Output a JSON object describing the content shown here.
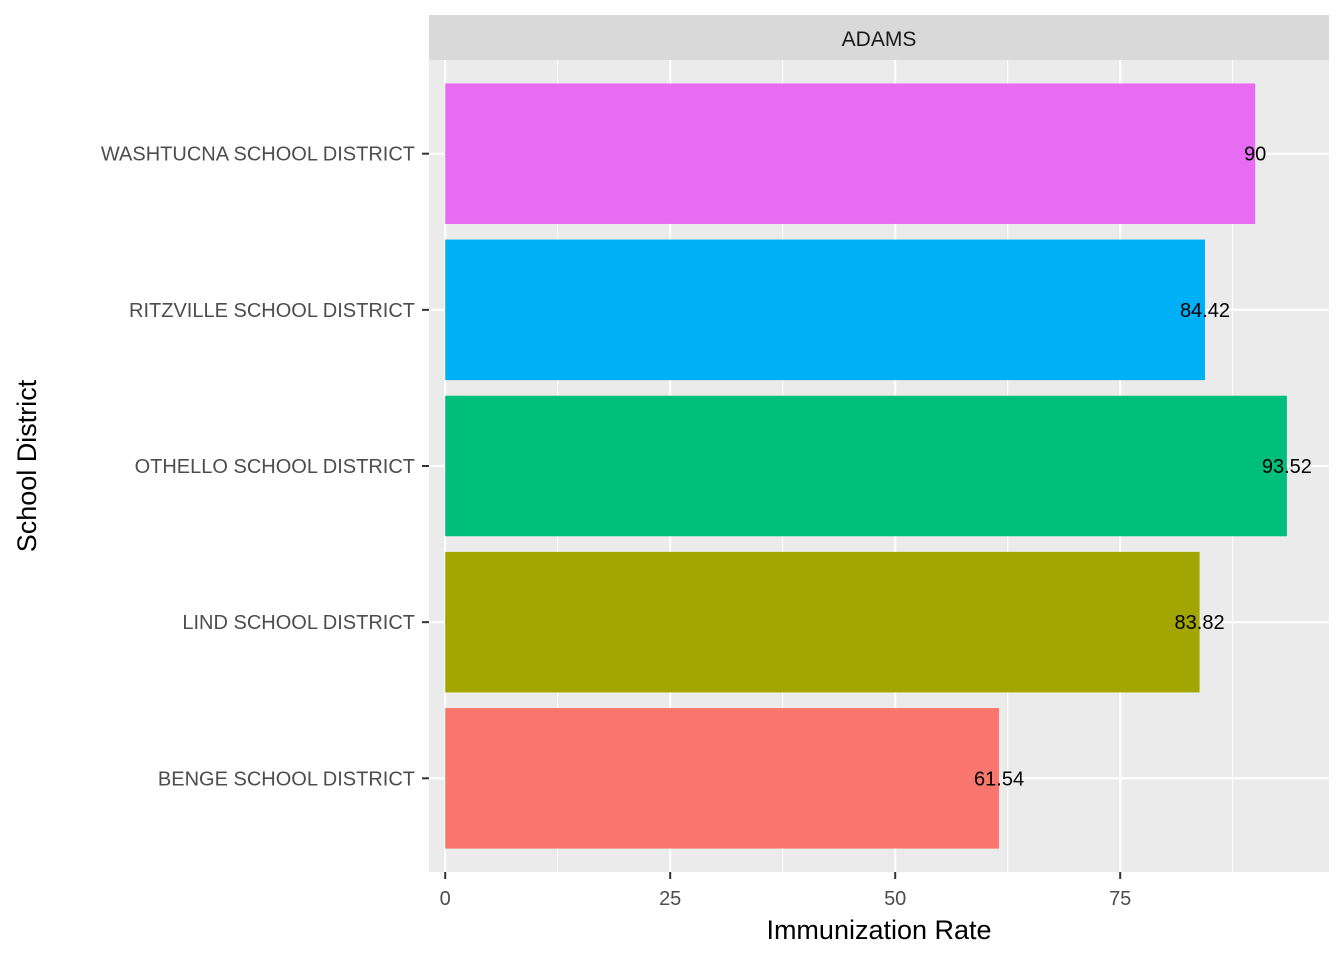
{
  "chart_data": {
    "type": "bar",
    "orientation": "horizontal",
    "facet": "ADAMS",
    "categories": [
      "BENGE SCHOOL DISTRICT",
      "LIND SCHOOL DISTRICT",
      "OTHELLO SCHOOL DISTRICT",
      "RITZVILLE SCHOOL DISTRICT",
      "WASHTUCNA SCHOOL DISTRICT"
    ],
    "values": [
      61.54,
      83.82,
      93.52,
      84.42,
      90
    ],
    "value_labels": [
      "61.54",
      "83.82",
      "93.52",
      "84.42",
      "90"
    ],
    "colors": [
      "#F8766D",
      "#A3A500",
      "#00BF7D",
      "#00B0F6",
      "#E76BF3"
    ],
    "xlabel": "Immunization Rate",
    "ylabel": "School District",
    "xlim": [
      -1.8,
      98.2
    ],
    "x_ticks": [
      0,
      25,
      50,
      75
    ],
    "x_tick_labels": [
      "0",
      "25",
      "50",
      "75"
    ],
    "grid": true,
    "legend": "none",
    "panel_background": "#EBEBEB",
    "strip_background": "#D9D9D9"
  }
}
